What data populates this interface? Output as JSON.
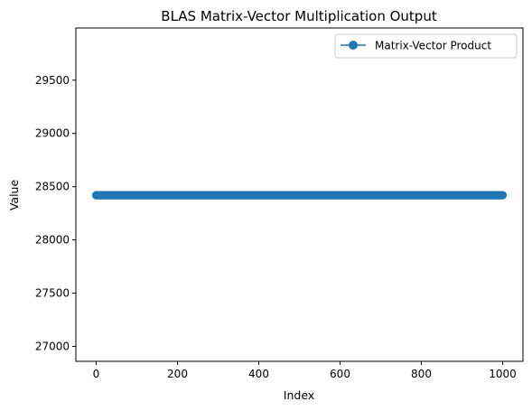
{
  "chart_data": {
    "type": "line",
    "title": "BLAS Matrix-Vector Multiplication Output",
    "xlabel": "Index",
    "ylabel": "Value",
    "xlim": [
      -50,
      1050
    ],
    "ylim": [
      26860,
      29990
    ],
    "x_ticks": [
      0,
      200,
      400,
      600,
      800,
      1000
    ],
    "y_ticks": [
      27000,
      27500,
      28000,
      28500,
      29000,
      29500
    ],
    "grid": false,
    "legend_position": "top-right",
    "series": [
      {
        "name": "Matrix-Vector Product",
        "color": "#1f77b4",
        "marker": "circle",
        "x_start": 0,
        "x_end": 1000,
        "value": 28420
      }
    ]
  }
}
